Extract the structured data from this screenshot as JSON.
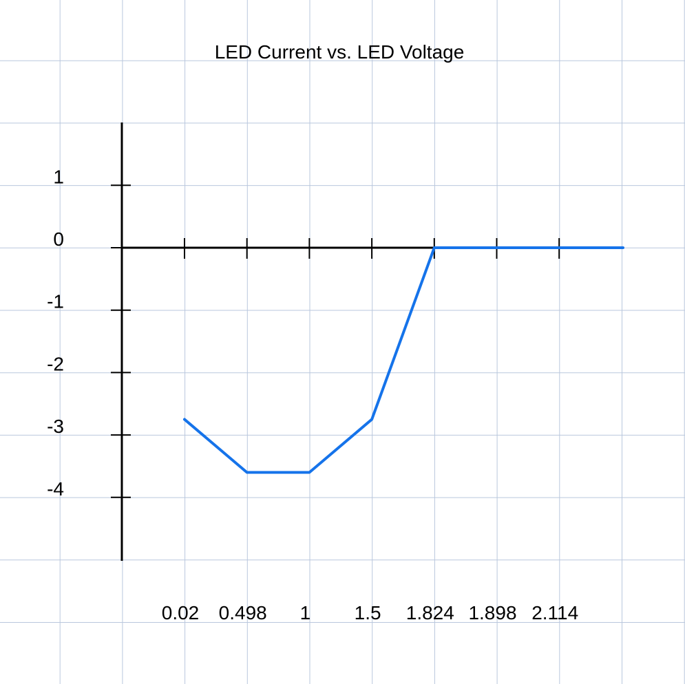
{
  "chart_data": {
    "type": "line",
    "title": "LED Current vs. LED Voltage",
    "xlabel": "",
    "ylabel": "",
    "categories": [
      "0.02",
      "0.498",
      "1",
      "1.5",
      "1.824",
      "1.898",
      "2.114"
    ],
    "series": [
      {
        "values": [
          -2.75,
          -3.6,
          -3.6,
          -2.75,
          0,
          0,
          0
        ],
        "end_value": 0,
        "color": "#1573EA"
      }
    ],
    "y_ticks": [
      "1",
      "0",
      "-1",
      "-2",
      "-3",
      "-4"
    ],
    "ylim": [
      -5,
      2
    ],
    "grid": true,
    "grid_color": "#B9C7DD",
    "axis_color": "#000000",
    "legend": "none"
  }
}
